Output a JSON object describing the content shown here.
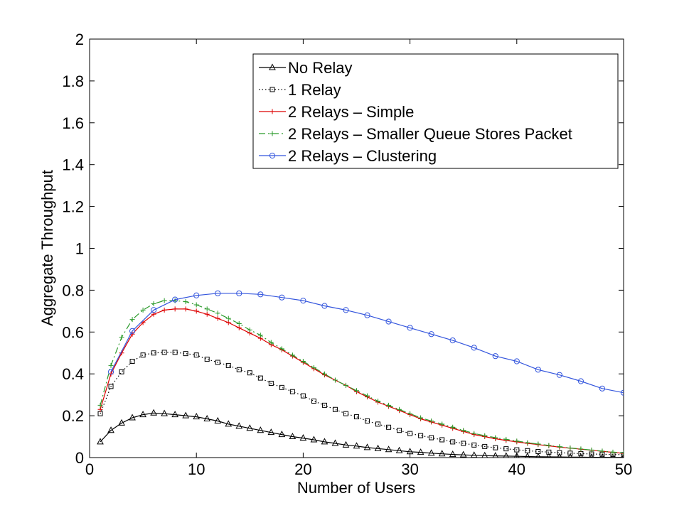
{
  "chart_data": {
    "type": "line",
    "title": "",
    "xlabel": "Number of Users",
    "ylabel": "Aggregate Throughput",
    "xlim": [
      0,
      50
    ],
    "ylim": [
      0,
      2
    ],
    "x_ticks": [
      0,
      10,
      20,
      30,
      40,
      50
    ],
    "x_tick_labels": [
      "0",
      "10",
      "20",
      "30",
      "40",
      "50"
    ],
    "y_ticks": [
      0,
      0.2,
      0.4,
      0.6,
      0.8,
      1,
      1.2,
      1.4,
      1.6,
      1.8,
      2
    ],
    "y_tick_labels": [
      "0",
      "0.2",
      "0.4",
      "0.6",
      "0.8",
      "1",
      "1.2",
      "1.4",
      "1.6",
      "1.8",
      "2"
    ],
    "grid": false,
    "legend_position": "top-right",
    "series": [
      {
        "name": "No Relay",
        "color": "#000000",
        "line_style": "solid",
        "marker": "triangle",
        "x": [
          1,
          2,
          3,
          4,
          5,
          6,
          7,
          8,
          9,
          10,
          11,
          12,
          13,
          14,
          15,
          16,
          17,
          18,
          19,
          20,
          21,
          22,
          23,
          24,
          25,
          26,
          27,
          28,
          29,
          30,
          31,
          32,
          33,
          34,
          35,
          36,
          37,
          38,
          39,
          40,
          41,
          42,
          43,
          44,
          45,
          46,
          47,
          48,
          49,
          50
        ],
        "y": [
          0.075,
          0.13,
          0.165,
          0.19,
          0.205,
          0.213,
          0.21,
          0.205,
          0.2,
          0.195,
          0.185,
          0.175,
          0.16,
          0.15,
          0.14,
          0.13,
          0.12,
          0.11,
          0.1,
          0.093,
          0.085,
          0.075,
          0.068,
          0.06,
          0.055,
          0.048,
          0.043,
          0.038,
          0.033,
          0.028,
          0.025,
          0.021,
          0.018,
          0.015,
          0.013,
          0.011,
          0.009,
          0.008,
          0.007,
          0.006,
          0.005,
          0.004,
          0.0035,
          0.003,
          0.0025,
          0.002,
          0.0015,
          0.0012,
          0.001,
          0.001
        ]
      },
      {
        "name": "1 Relay",
        "color": "#000000",
        "line_style": "dotted",
        "marker": "square",
        "x": [
          1,
          2,
          3,
          4,
          5,
          6,
          7,
          8,
          9,
          10,
          11,
          12,
          13,
          14,
          15,
          16,
          17,
          18,
          19,
          20,
          21,
          22,
          23,
          24,
          25,
          26,
          27,
          28,
          29,
          30,
          31,
          32,
          33,
          34,
          35,
          36,
          37,
          38,
          39,
          40,
          41,
          42,
          43,
          44,
          45,
          46,
          47,
          48,
          49,
          50
        ],
        "y": [
          0.21,
          0.34,
          0.41,
          0.46,
          0.49,
          0.5,
          0.503,
          0.503,
          0.497,
          0.49,
          0.47,
          0.455,
          0.44,
          0.42,
          0.405,
          0.38,
          0.355,
          0.335,
          0.315,
          0.295,
          0.27,
          0.25,
          0.23,
          0.21,
          0.195,
          0.175,
          0.16,
          0.145,
          0.13,
          0.115,
          0.105,
          0.095,
          0.085,
          0.075,
          0.068,
          0.06,
          0.053,
          0.047,
          0.042,
          0.037,
          0.033,
          0.029,
          0.026,
          0.023,
          0.021,
          0.019,
          0.017,
          0.016,
          0.015,
          0.014
        ]
      },
      {
        "name": "2 Relays – Simple",
        "color": "#dd0000",
        "line_style": "solid",
        "marker": "plus",
        "x": [
          1,
          2,
          3,
          4,
          5,
          6,
          7,
          8,
          9,
          10,
          11,
          12,
          13,
          14,
          15,
          16,
          17,
          18,
          19,
          20,
          21,
          22,
          23,
          24,
          25,
          26,
          27,
          28,
          29,
          30,
          31,
          32,
          33,
          34,
          35,
          36,
          37,
          38,
          39,
          40,
          41,
          42,
          43,
          44,
          45,
          46,
          47,
          48,
          49,
          50
        ],
        "y": [
          0.23,
          0.4,
          0.5,
          0.59,
          0.645,
          0.685,
          0.705,
          0.71,
          0.71,
          0.7,
          0.685,
          0.665,
          0.645,
          0.62,
          0.595,
          0.57,
          0.54,
          0.515,
          0.485,
          0.455,
          0.425,
          0.395,
          0.37,
          0.345,
          0.315,
          0.29,
          0.265,
          0.245,
          0.225,
          0.205,
          0.185,
          0.17,
          0.155,
          0.14,
          0.125,
          0.11,
          0.1,
          0.09,
          0.082,
          0.075,
          0.068,
          0.062,
          0.056,
          0.05,
          0.045,
          0.04,
          0.035,
          0.03,
          0.025,
          0.02
        ]
      },
      {
        "name": "2 Relays – Smaller Queue Stores Packet",
        "color": "#2a9a2a",
        "line_style": "dashdot",
        "marker": "plus",
        "x": [
          1,
          2,
          3,
          4,
          5,
          6,
          7,
          8,
          9,
          10,
          11,
          12,
          13,
          14,
          15,
          16,
          17,
          18,
          19,
          20,
          21,
          22,
          23,
          24,
          25,
          26,
          27,
          28,
          29,
          30,
          31,
          32,
          33,
          34,
          35,
          36,
          37,
          38,
          39,
          40,
          41,
          42,
          43,
          44,
          45,
          46,
          47,
          48,
          49,
          50
        ],
        "y": [
          0.25,
          0.44,
          0.575,
          0.66,
          0.705,
          0.735,
          0.75,
          0.75,
          0.745,
          0.73,
          0.71,
          0.69,
          0.665,
          0.64,
          0.61,
          0.585,
          0.55,
          0.52,
          0.49,
          0.46,
          0.43,
          0.4,
          0.37,
          0.345,
          0.32,
          0.295,
          0.27,
          0.25,
          0.23,
          0.21,
          0.19,
          0.175,
          0.16,
          0.145,
          0.13,
          0.115,
          0.105,
          0.095,
          0.087,
          0.079,
          0.071,
          0.065,
          0.058,
          0.052,
          0.046,
          0.041,
          0.036,
          0.031,
          0.026,
          0.022
        ]
      },
      {
        "name": "2 Relays – Clustering",
        "color": "#3355dd",
        "line_style": "solid",
        "marker": "circle",
        "x": [
          2,
          4,
          6,
          8,
          10,
          12,
          14,
          16,
          18,
          20,
          22,
          24,
          26,
          28,
          30,
          32,
          34,
          36,
          38,
          40,
          42,
          44,
          46,
          48,
          50
        ],
        "y": [
          0.41,
          0.605,
          0.705,
          0.755,
          0.775,
          0.785,
          0.785,
          0.78,
          0.765,
          0.75,
          0.725,
          0.705,
          0.68,
          0.65,
          0.62,
          0.59,
          0.56,
          0.525,
          0.485,
          0.46,
          0.42,
          0.395,
          0.365,
          0.33,
          0.31
        ]
      }
    ]
  }
}
